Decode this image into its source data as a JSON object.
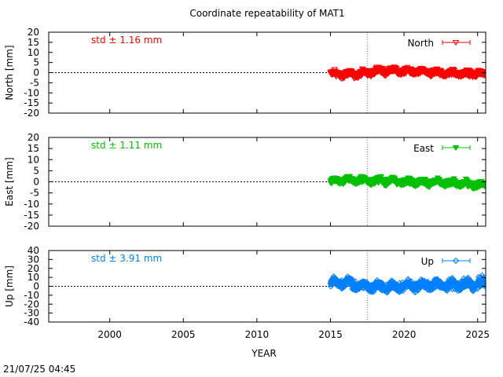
{
  "chart_data": {
    "type": "scatter",
    "title": "Coordinate repeatability of MAT1",
    "xlabel": "YEAR",
    "xlim": [
      1995.85,
      2025.55
    ],
    "x_ticks": [
      2000,
      2005,
      2010,
      2015,
      2020,
      2025
    ],
    "vertical_marker_x": 2017.5,
    "timestamp": "21/07/25 04:45",
    "panels": [
      {
        "name": "North",
        "ylabel": "North [mm]",
        "ylim": [
          -20,
          20
        ],
        "y_ticks": [
          20,
          15,
          10,
          5,
          0,
          -5,
          -10,
          -15,
          -20
        ],
        "std_label": "std ± 1.16 mm",
        "color": "#ff0000",
        "marker": "open-triangle-down",
        "data_start": 2015.0,
        "data_end": 2025.55,
        "trend": [
          [
            2015.0,
            -0.5
          ],
          [
            2016.0,
            -1.0
          ],
          [
            2017.0,
            -0.5
          ],
          [
            2018.0,
            0.5
          ],
          [
            2019.0,
            1.0
          ],
          [
            2020.0,
            0.5
          ],
          [
            2021.0,
            0.3
          ],
          [
            2022.0,
            0.0
          ],
          [
            2023.0,
            -0.3
          ],
          [
            2024.0,
            -0.5
          ],
          [
            2025.5,
            -0.5
          ]
        ],
        "spread": 2.2
      },
      {
        "name": "East",
        "ylabel": "East [mm]",
        "ylim": [
          -20,
          20
        ],
        "y_ticks": [
          20,
          15,
          10,
          5,
          0,
          -5,
          -10,
          -15,
          -20
        ],
        "std_label": "std ± 1.11 mm",
        "color": "#00c000",
        "marker": "filled-triangle-down",
        "data_start": 2015.0,
        "data_end": 2025.55,
        "trend": [
          [
            2015.0,
            0.0
          ],
          [
            2016.0,
            0.8
          ],
          [
            2017.0,
            0.5
          ],
          [
            2018.0,
            0.5
          ],
          [
            2019.0,
            0.3
          ],
          [
            2020.0,
            0.0
          ],
          [
            2021.0,
            -0.2
          ],
          [
            2022.0,
            -0.3
          ],
          [
            2023.0,
            -0.5
          ],
          [
            2024.0,
            -1.0
          ],
          [
            2025.5,
            -1.5
          ]
        ],
        "spread": 2.0
      },
      {
        "name": "Up",
        "ylabel": "Up [mm]",
        "ylim": [
          -40,
          40
        ],
        "y_ticks": [
          40,
          30,
          20,
          10,
          0,
          -10,
          -20,
          -30,
          -40
        ],
        "std_label": "std ± 3.91 mm",
        "color": "#0080ff",
        "marker": "open-diamond",
        "data_start": 2015.0,
        "data_end": 2025.55,
        "trend": [
          [
            2015.0,
            3.0
          ],
          [
            2016.0,
            5.0
          ],
          [
            2017.0,
            0.0
          ],
          [
            2018.0,
            0.0
          ],
          [
            2019.0,
            -1.0
          ],
          [
            2020.0,
            0.5
          ],
          [
            2021.0,
            1.0
          ],
          [
            2022.0,
            2.0
          ],
          [
            2023.0,
            1.0
          ],
          [
            2024.0,
            2.0
          ],
          [
            2025.5,
            3.0
          ]
        ],
        "spread": 7.5
      }
    ]
  }
}
